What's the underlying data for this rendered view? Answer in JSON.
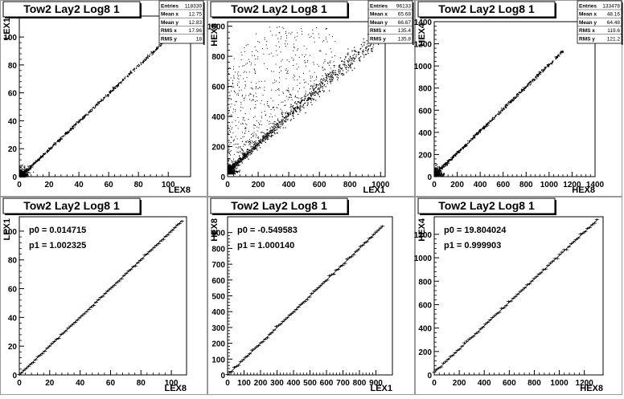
{
  "chart_data": [
    {
      "type": "scatter",
      "title": "Tow2 Lay2 Log8 1",
      "xlabel": "LEX8",
      "ylabel": "LEX1",
      "xlim": [
        0,
        115
      ],
      "ylim": [
        0,
        115
      ],
      "xticks": [
        0,
        20,
        40,
        60,
        80,
        100
      ],
      "yticks": [
        0,
        20,
        40,
        60,
        80,
        100
      ],
      "stats": [
        {
          "label": "Entries",
          "value": "118339"
        },
        {
          "label": "Mean x",
          "value": "12.75"
        },
        {
          "label": "Mean y",
          "value": "12.83"
        },
        {
          "label": "RMS x",
          "value": "17.96"
        },
        {
          "label": "RMS y",
          "value": "18"
        }
      ],
      "fit": null,
      "pattern": {
        "slope": 1.0,
        "intercept": 0.0,
        "xmax": 108,
        "spread": 0.6,
        "outliers": 0
      }
    },
    {
      "type": "scatter",
      "title": "Tow2 Lay2 Log8 1",
      "xlabel": "LEX1",
      "ylabel": "HEX8",
      "xlim": [
        0,
        1030
      ],
      "ylim": [
        0,
        1030
      ],
      "xticks": [
        0,
        200,
        400,
        600,
        800,
        1000
      ],
      "yticks": [
        0,
        200,
        400,
        600,
        800,
        1000
      ],
      "stats": [
        {
          "label": "Entries",
          "value": "96133"
        },
        {
          "label": "Mean x",
          "value": "65.68"
        },
        {
          "label": "Mean y",
          "value": "66.67"
        },
        {
          "label": "RMS x",
          "value": "135.4"
        },
        {
          "label": "RMS y",
          "value": "135.8"
        }
      ],
      "fit": null,
      "pattern": {
        "slope": 0.92,
        "intercept": 40,
        "xmax": 1010,
        "spread": 18,
        "outliers": 900
      }
    },
    {
      "type": "scatter",
      "title": "Tow2 Lay2 Log8 1",
      "xlabel": "HEX8",
      "ylabel": "HEX4",
      "xlim": [
        0,
        1400
      ],
      "ylim": [
        0,
        1400
      ],
      "xticks": [
        0,
        200,
        400,
        600,
        800,
        1000,
        1200,
        1400
      ],
      "yticks": [
        0,
        200,
        400,
        600,
        800,
        1000,
        1200,
        1400
      ],
      "stats": [
        {
          "label": "Entries",
          "value": "133478"
        },
        {
          "label": "Mean x",
          "value": "48.16"
        },
        {
          "label": "Mean y",
          "value": "64.48"
        },
        {
          "label": "RMS x",
          "value": "119.6"
        },
        {
          "label": "RMS y",
          "value": "121.2"
        }
      ],
      "fit": null,
      "pattern": {
        "slope": 1.0,
        "intercept": 20,
        "xmax": 1120,
        "spread": 8,
        "outliers": 0
      }
    },
    {
      "type": "scatter",
      "title": "Tow2 Lay2 Log8 1",
      "xlabel": "LEX8",
      "ylabel": "LEX1",
      "xlim": [
        0,
        110
      ],
      "ylim": [
        0,
        110
      ],
      "xticks": [
        0,
        20,
        40,
        60,
        80,
        100
      ],
      "yticks": [
        0,
        20,
        40,
        60,
        80,
        100
      ],
      "stats": null,
      "fit": {
        "p0": "p0 = 0.014715",
        "p1": "p1 = 1.002325",
        "intercept": 0.014715,
        "slope": 1.002325,
        "xmin": 0,
        "xmax": 107
      },
      "pattern": {
        "slope": 1.0,
        "intercept": 0.0,
        "xmax": 107,
        "spread": 0.3,
        "outliers": 0
      }
    },
    {
      "type": "scatter",
      "title": "Tow2 Lay2 Log8 1",
      "xlabel": "LEX1",
      "ylabel": "HEX8",
      "xlim": [
        0,
        1000
      ],
      "ylim": [
        0,
        1000
      ],
      "xticks": [
        0,
        100,
        200,
        300,
        400,
        500,
        600,
        700,
        800,
        900
      ],
      "yticks": [
        0,
        100,
        200,
        300,
        400,
        500,
        600,
        700,
        800,
        900
      ],
      "stats": null,
      "fit": {
        "p0": "p0 = -0.549583",
        "p1": "p1 = 1.000140",
        "intercept": -0.549583,
        "slope": 1.00014,
        "xmin": 0,
        "xmax": 940
      },
      "pattern": {
        "slope": 1.0,
        "intercept": 0.0,
        "xmax": 940,
        "spread": 4,
        "outliers": 0
      }
    },
    {
      "type": "scatter",
      "title": "Tow2 Lay2 Log8 1",
      "xlabel": "HEX8",
      "ylabel": "HEX4",
      "xlim": [
        0,
        1350
      ],
      "ylim": [
        0,
        1350
      ],
      "xticks": [
        0,
        200,
        400,
        600,
        800,
        1000,
        1200
      ],
      "yticks": [
        0,
        200,
        400,
        600,
        800,
        1000,
        1200
      ],
      "stats": null,
      "fit": {
        "p0": "p0 = 19.804024",
        "p1": "p1 = 0.999903",
        "intercept": 19.804024,
        "slope": 0.999903,
        "xmin": 0,
        "xmax": 1300
      },
      "pattern": {
        "slope": 1.0,
        "intercept": 20,
        "xmax": 1300,
        "spread": 5,
        "outliers": 0
      }
    }
  ]
}
